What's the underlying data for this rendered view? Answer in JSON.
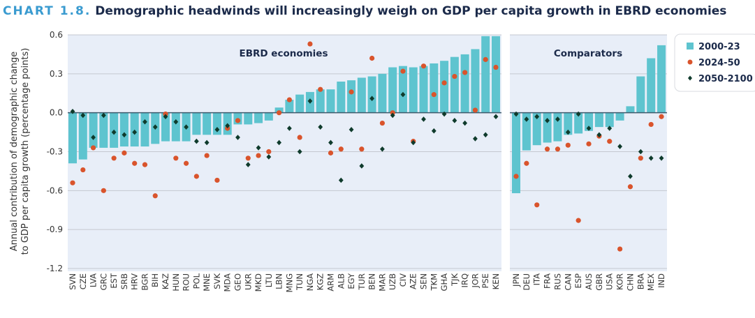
{
  "title": {
    "number": "CHART 1.8.",
    "text": "Demographic headwinds will increasingly weigh on GDP per capita growth in EBRD economies"
  },
  "chart_data": {
    "type": "bar",
    "ylabel": [
      "Annual contribution of demographic change",
      "to GDP per capita growth (percentage points)"
    ],
    "ylim": [
      -1.2,
      0.6
    ],
    "yticks": [
      0.6,
      0.3,
      0.0,
      -0.3,
      -0.6,
      -0.9,
      -1.2
    ],
    "ytick_labels": [
      "0.6",
      "0.3",
      "0.0",
      "-0.3",
      "-0.6",
      "-0.9",
      "-1.2"
    ],
    "grid": true,
    "legend_placement": "right",
    "colors": {
      "bars": "#5ec4cf",
      "dots": "#d9542c",
      "diamonds": "#0f3b2c",
      "panel_bg": "#e8eef8"
    },
    "legend": [
      {
        "name": "2000-23",
        "marker": "square"
      },
      {
        "name": "2024-50",
        "marker": "circle"
      },
      {
        "name": "2050-2100",
        "marker": "diamond"
      }
    ],
    "panels": [
      {
        "label": "EBRD economies",
        "categories": [
          "SVN",
          "CZE",
          "LVA",
          "GRC",
          "EST",
          "SRB",
          "HRV",
          "BGR",
          "BIH",
          "KAZ",
          "HUN",
          "ROU",
          "POL",
          "MNE",
          "SVK",
          "MDA",
          "GEO",
          "UKR",
          "MKD",
          "LTU",
          "LBN",
          "MNG",
          "TUN",
          "NGA",
          "KGZ",
          "ARM",
          "ALB",
          "EGY",
          "TUR",
          "BEN",
          "MAR",
          "UZB",
          "CIV",
          "AZE",
          "SEN",
          "TKM",
          "GHA",
          "TJK",
          "IRQ",
          "JOR",
          "PSE",
          "KEN"
        ],
        "series": [
          {
            "name": "2000-23",
            "values": [
              -0.39,
              -0.36,
              -0.27,
              -0.27,
              -0.27,
              -0.26,
              -0.26,
              -0.26,
              -0.24,
              -0.22,
              -0.22,
              -0.22,
              -0.17,
              -0.17,
              -0.17,
              -0.17,
              -0.09,
              -0.09,
              -0.08,
              -0.06,
              0.04,
              0.1,
              0.14,
              0.16,
              0.18,
              0.18,
              0.24,
              0.25,
              0.27,
              0.28,
              0.3,
              0.35,
              0.36,
              0.35,
              0.36,
              0.38,
              0.4,
              0.43,
              0.45,
              0.49,
              0.59,
              0.59
            ]
          },
          {
            "name": "2024-50",
            "values": [
              -0.54,
              -0.44,
              -0.27,
              -0.6,
              -0.35,
              -0.31,
              -0.39,
              -0.4,
              -0.64,
              -0.01,
              -0.35,
              -0.39,
              -0.49,
              -0.33,
              -0.52,
              -0.12,
              -0.06,
              -0.35,
              -0.33,
              -0.3,
              0.0,
              0.1,
              -0.19,
              0.53,
              0.18,
              -0.31,
              -0.28,
              0.16,
              -0.28,
              0.42,
              -0.08,
              0.0,
              0.32,
              -0.22,
              0.36,
              0.14,
              0.23,
              0.28,
              0.31,
              0.02,
              0.41,
              0.35
            ]
          },
          {
            "name": "2050-2100",
            "values": [
              0.01,
              -0.02,
              -0.19,
              -0.02,
              -0.15,
              -0.17,
              -0.15,
              -0.07,
              -0.11,
              -0.03,
              -0.07,
              -0.11,
              -0.22,
              -0.23,
              -0.13,
              -0.1,
              -0.19,
              -0.4,
              -0.27,
              -0.34,
              -0.23,
              -0.12,
              -0.3,
              0.09,
              -0.11,
              -0.23,
              -0.52,
              -0.13,
              -0.41,
              0.11,
              -0.28,
              -0.02,
              0.14,
              -0.23,
              -0.05,
              -0.14,
              -0.01,
              -0.06,
              -0.08,
              -0.2,
              -0.17,
              -0.03
            ]
          }
        ]
      },
      {
        "label": "Comparators",
        "categories": [
          "JPN",
          "DEU",
          "ITA",
          "FRA",
          "RUS",
          "CAN",
          "ESP",
          "AUS",
          "GBR",
          "USA",
          "KOR",
          "CHN",
          "BRA",
          "MEX",
          "IND"
        ],
        "series": [
          {
            "name": "2000-23",
            "values": [
              -0.62,
              -0.29,
              -0.25,
              -0.23,
              -0.22,
              -0.17,
              -0.16,
              -0.14,
              -0.11,
              -0.11,
              -0.06,
              0.05,
              0.28,
              0.42,
              0.52
            ]
          },
          {
            "name": "2024-50",
            "values": [
              -0.49,
              -0.39,
              -0.71,
              -0.28,
              -0.28,
              -0.25,
              -0.83,
              -0.24,
              -0.18,
              -0.22,
              -1.05,
              -0.57,
              -0.35,
              -0.09,
              -0.03
            ]
          },
          {
            "name": "2050-2100",
            "values": [
              -0.01,
              -0.05,
              -0.03,
              -0.06,
              -0.05,
              -0.15,
              -0.01,
              -0.12,
              -0.17,
              -0.12,
              -0.26,
              -0.49,
              -0.3,
              -0.35,
              -0.35
            ]
          }
        ]
      }
    ]
  }
}
